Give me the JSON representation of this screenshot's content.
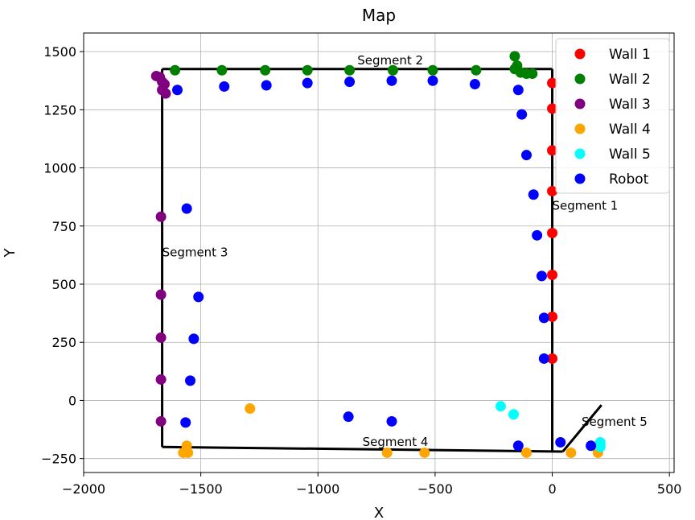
{
  "chart_data": {
    "type": "scatter",
    "title": "Map",
    "xlabel": "X",
    "ylabel": "Y",
    "xlim": [
      -2000,
      520
    ],
    "ylim": [
      -310,
      1580
    ],
    "xticks": [
      -2000,
      -1500,
      -1000,
      -500,
      0,
      500
    ],
    "yticks": [
      -250,
      0,
      250,
      500,
      750,
      1000,
      1250,
      1500
    ],
    "xtick_labels": [
      "−2000",
      "−1500",
      "−1000",
      "−500",
      "0",
      "500"
    ],
    "ytick_labels": [
      "−250",
      "0",
      "250",
      "500",
      "750",
      "1000",
      "1250",
      "1500"
    ],
    "grid": true,
    "legend_position": "top-right",
    "series": [
      {
        "name": "Wall 1",
        "color": "#ff0000",
        "points": [
          [
            0,
            1365
          ],
          [
            0,
            1255
          ],
          [
            0,
            1075
          ],
          [
            0,
            900
          ],
          [
            0,
            720
          ],
          [
            0,
            540
          ],
          [
            0,
            360
          ],
          [
            0,
            180
          ]
        ]
      },
      {
        "name": "Wall 2",
        "color": "#008000",
        "points": [
          [
            -1610,
            1420
          ],
          [
            -1410,
            1420
          ],
          [
            -1225,
            1420
          ],
          [
            -1045,
            1420
          ],
          [
            -865,
            1420
          ],
          [
            -680,
            1420
          ],
          [
            -510,
            1420
          ],
          [
            -325,
            1420
          ],
          [
            -160,
            1480
          ],
          [
            -150,
            1440
          ],
          [
            -160,
            1425
          ],
          [
            -135,
            1410
          ],
          [
            -110,
            1405
          ],
          [
            -85,
            1405
          ]
        ]
      },
      {
        "name": "Wall 3",
        "color": "#800080",
        "points": [
          [
            -1690,
            1395
          ],
          [
            -1675,
            1390
          ],
          [
            -1665,
            1370
          ],
          [
            -1655,
            1360
          ],
          [
            -1665,
            1335
          ],
          [
            -1650,
            1320
          ],
          [
            -1670,
            790
          ],
          [
            -1670,
            455
          ],
          [
            -1670,
            270
          ],
          [
            -1670,
            90
          ],
          [
            -1670,
            -90
          ]
        ]
      },
      {
        "name": "Wall 4",
        "color": "#ffa500",
        "points": [
          [
            -1290,
            -35
          ],
          [
            -1560,
            -195
          ],
          [
            -1575,
            -225
          ],
          [
            -1555,
            -225
          ],
          [
            -705,
            -225
          ],
          [
            -545,
            -225
          ],
          [
            -110,
            -225
          ],
          [
            80,
            -225
          ],
          [
            195,
            -225
          ]
        ]
      },
      {
        "name": "Wall 5",
        "color": "#00ffff",
        "points": [
          [
            -220,
            -25
          ],
          [
            -165,
            -60
          ],
          [
            205,
            -180
          ],
          [
            205,
            -190
          ],
          [
            205,
            -200
          ]
        ]
      },
      {
        "name": "Robot",
        "color": "#0000ff",
        "points": [
          [
            -1600,
            1335
          ],
          [
            -1400,
            1350
          ],
          [
            -1220,
            1355
          ],
          [
            -1045,
            1365
          ],
          [
            -865,
            1370
          ],
          [
            -685,
            1375
          ],
          [
            -510,
            1375
          ],
          [
            -330,
            1360
          ],
          [
            -145,
            1335
          ],
          [
            -130,
            1230
          ],
          [
            -110,
            1055
          ],
          [
            -80,
            885
          ],
          [
            -65,
            710
          ],
          [
            -45,
            535
          ],
          [
            -35,
            355
          ],
          [
            -35,
            180
          ],
          [
            -1560,
            825
          ],
          [
            -1510,
            445
          ],
          [
            -1530,
            265
          ],
          [
            -1545,
            85
          ],
          [
            -1565,
            -95
          ],
          [
            -870,
            -70
          ],
          [
            -685,
            -90
          ],
          [
            -145,
            -195
          ],
          [
            35,
            -180
          ],
          [
            165,
            -195
          ]
        ]
      }
    ],
    "lines": [
      {
        "name": "Segment 1",
        "points": [
          [
            0,
            1425
          ],
          [
            0,
            -220
          ]
        ]
      },
      {
        "name": "Segment 2",
        "points": [
          [
            -1665,
            1425
          ],
          [
            0,
            1425
          ]
        ]
      },
      {
        "name": "Segment 3",
        "points": [
          [
            -1665,
            1425
          ],
          [
            -1665,
            -200
          ]
        ]
      },
      {
        "name": "Segment 4",
        "points": [
          [
            -1665,
            -200
          ],
          [
            45,
            -220
          ]
        ]
      },
      {
        "name": "Segment 5",
        "points": [
          [
            45,
            -220
          ],
          [
            210,
            -20
          ]
        ]
      }
    ],
    "annotations": [
      {
        "text": "Segment 1",
        "x": 0,
        "y": 820
      },
      {
        "text": "Segment 2",
        "x": -832,
        "y": 1445
      },
      {
        "text": "Segment 3",
        "x": -1665,
        "y": 620
      },
      {
        "text": "Segment 4",
        "x": -810,
        "y": -195
      },
      {
        "text": "Segment 5",
        "x": 125,
        "y": -110
      }
    ]
  }
}
